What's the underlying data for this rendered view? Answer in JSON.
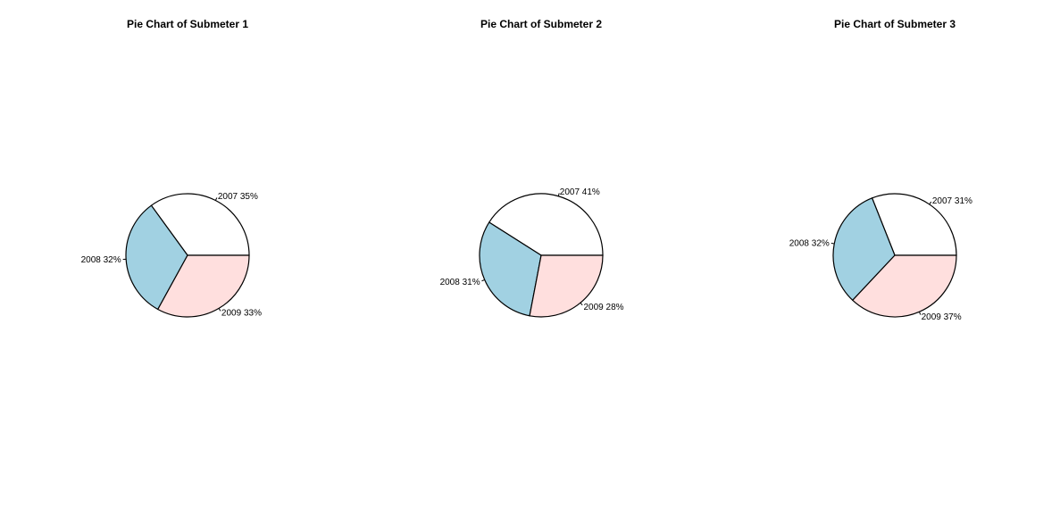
{
  "colors": {
    "2007": "#ffffff",
    "2008": "#a1d1e2",
    "2009": "#ffdfde"
  },
  "chart_data": [
    {
      "type": "pie",
      "title": "Pie Chart of Submeter 1",
      "slices": [
        {
          "category": "2007",
          "percent": 35,
          "label": "2007 35%"
        },
        {
          "category": "2008",
          "percent": 32,
          "label": "2008 32%"
        },
        {
          "category": "2009",
          "percent": 33,
          "label": "2009 33%"
        }
      ]
    },
    {
      "type": "pie",
      "title": "Pie Chart of Submeter 2",
      "slices": [
        {
          "category": "2007",
          "percent": 41,
          "label": "2007 41%"
        },
        {
          "category": "2008",
          "percent": 31,
          "label": "2008 31%"
        },
        {
          "category": "2009",
          "percent": 28,
          "label": "2009 28%"
        }
      ]
    },
    {
      "type": "pie",
      "title": "Pie Chart of Submeter 3",
      "slices": [
        {
          "category": "2007",
          "percent": 31,
          "label": "2007 31%"
        },
        {
          "category": "2008",
          "percent": 32,
          "label": "2008 32%"
        },
        {
          "category": "2009",
          "percent": 37,
          "label": "2009 37%"
        }
      ]
    }
  ]
}
